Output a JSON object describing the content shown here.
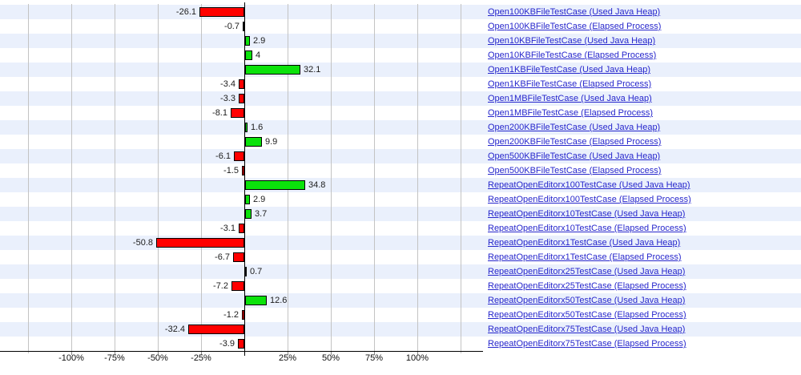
{
  "chart_data": {
    "type": "bar",
    "orientation": "horizontal",
    "title": "",
    "xlabel": "",
    "ylabel": "",
    "unit": "%",
    "xlim": [
      -125,
      137
    ],
    "grid": true,
    "gridline_values": [
      -125,
      -100,
      -75,
      -50,
      -25,
      0,
      25,
      50,
      75,
      100,
      125
    ],
    "axis_ticks": [
      {
        "value": -100,
        "label": "-100%"
      },
      {
        "value": -75,
        "label": "-75%"
      },
      {
        "value": -50,
        "label": "-50%"
      },
      {
        "value": -25,
        "label": "-25%"
      },
      {
        "value": 25,
        "label": "25%"
      },
      {
        "value": 50,
        "label": "50%"
      },
      {
        "value": 75,
        "label": "75%"
      },
      {
        "value": 100,
        "label": "100%"
      }
    ],
    "colors": {
      "positive_bar": "#0be20b",
      "negative_bar": "#ff0000",
      "bar_border": "#000000",
      "row_band": "#eaf0fc",
      "row_band_alt": "#ffffff",
      "gridline": "#c3c3c3",
      "axis": "#000000",
      "link": "#2626cc"
    },
    "rows": [
      {
        "label": "Open100KBFileTestCase (Used Java Heap)",
        "value": -26.1,
        "value_label": "-26.1"
      },
      {
        "label": "Open100KBFileTestCase (Elapsed Process)",
        "value": -0.7,
        "value_label": "-0.7"
      },
      {
        "label": "Open10KBFileTestCase (Used Java Heap)",
        "value": 2.9,
        "value_label": "2.9"
      },
      {
        "label": "Open10KBFileTestCase (Elapsed Process)",
        "value": 4,
        "value_label": "4"
      },
      {
        "label": "Open1KBFileTestCase (Used Java Heap)",
        "value": 32.1,
        "value_label": "32.1"
      },
      {
        "label": "Open1KBFileTestCase (Elapsed Process)",
        "value": -3.4,
        "value_label": "-3.4"
      },
      {
        "label": "Open1MBFileTestCase (Used Java Heap)",
        "value": -3.3,
        "value_label": "-3.3"
      },
      {
        "label": "Open1MBFileTestCase (Elapsed Process)",
        "value": -8.1,
        "value_label": "-8.1"
      },
      {
        "label": "Open200KBFileTestCase (Used Java Heap)",
        "value": 1.6,
        "value_label": "1.6"
      },
      {
        "label": "Open200KBFileTestCase (Elapsed Process)",
        "value": 9.9,
        "value_label": "9.9"
      },
      {
        "label": "Open500KBFileTestCase (Used Java Heap)",
        "value": -6.1,
        "value_label": "-6.1"
      },
      {
        "label": "Open500KBFileTestCase (Elapsed Process)",
        "value": -1.5,
        "value_label": "-1.5"
      },
      {
        "label": "RepeatOpenEditorx100TestCase (Used Java Heap)",
        "value": 34.8,
        "value_label": "34.8"
      },
      {
        "label": "RepeatOpenEditorx100TestCase (Elapsed Process)",
        "value": 2.9,
        "value_label": "2.9"
      },
      {
        "label": "RepeatOpenEditorx10TestCase (Used Java Heap)",
        "value": 3.7,
        "value_label": "3.7"
      },
      {
        "label": "RepeatOpenEditorx10TestCase (Elapsed Process)",
        "value": -3.1,
        "value_label": "-3.1"
      },
      {
        "label": "RepeatOpenEditorx1TestCase (Used Java Heap)",
        "value": -50.8,
        "value_label": "-50.8"
      },
      {
        "label": "RepeatOpenEditorx1TestCase (Elapsed Process)",
        "value": -6.7,
        "value_label": "-6.7"
      },
      {
        "label": "RepeatOpenEditorx25TestCase (Used Java Heap)",
        "value": 0.7,
        "value_label": "0.7"
      },
      {
        "label": "RepeatOpenEditorx25TestCase (Elapsed Process)",
        "value": -7.2,
        "value_label": "-7.2"
      },
      {
        "label": "RepeatOpenEditorx50TestCase (Used Java Heap)",
        "value": 12.6,
        "value_label": "12.6"
      },
      {
        "label": "RepeatOpenEditorx50TestCase (Elapsed Process)",
        "value": -1.2,
        "value_label": "-1.2"
      },
      {
        "label": "RepeatOpenEditorx75TestCase (Used Java Heap)",
        "value": -32.4,
        "value_label": "-32.4"
      },
      {
        "label": "RepeatOpenEditorx75TestCase (Elapsed Process)",
        "value": -3.9,
        "value_label": "-3.9"
      }
    ]
  }
}
